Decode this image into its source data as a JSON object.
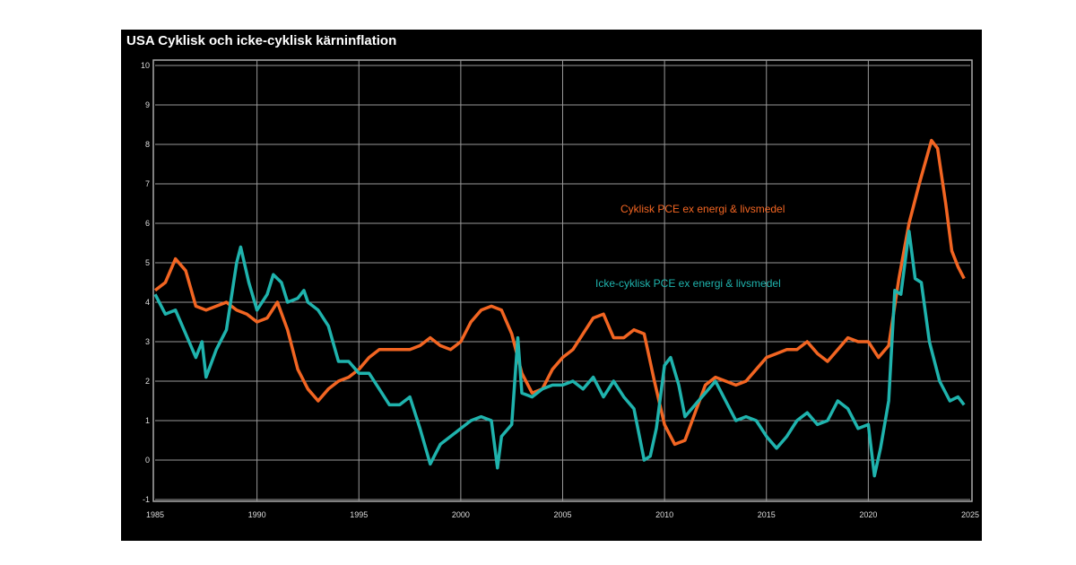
{
  "chart_data": {
    "type": "line",
    "title": "USA Cyklisk och icke-cyklisk kärninflation",
    "xlabel": "",
    "ylabel": "",
    "xlim": [
      1985,
      2025
    ],
    "ylim": [
      -1,
      10
    ],
    "xticks": [
      1985,
      1990,
      1995,
      2000,
      2005,
      2010,
      2015,
      2020,
      2025
    ],
    "yticks": [
      -1,
      0,
      1,
      2,
      3,
      4,
      5,
      6,
      7,
      8,
      9,
      10
    ],
    "grid": true,
    "legend": "inline-labels",
    "series": [
      {
        "name": "Cyklisk PCE ex energi & livsmedel",
        "color": "#f26522",
        "x": [
          1985,
          1985.5,
          1986,
          1986.5,
          1987,
          1987.5,
          1988,
          1988.5,
          1989,
          1989.5,
          1990,
          1990.5,
          1991,
          1991.5,
          1992,
          1992.5,
          1993,
          1993.5,
          1994,
          1994.5,
          1995,
          1995.5,
          1996,
          1997,
          1997.5,
          1998,
          1998.5,
          1999,
          1999.5,
          2000,
          2000.5,
          2001,
          2001.5,
          2002,
          2002.5,
          2003,
          2003.5,
          2004,
          2004.5,
          2005,
          2005.5,
          2006,
          2006.5,
          2007,
          2007.5,
          2008,
          2008.5,
          2009,
          2009.5,
          2010,
          2010.5,
          2011,
          2011.5,
          2012,
          2012.5,
          2013,
          2013.5,
          2014,
          2014.5,
          2015,
          2015.5,
          2016,
          2016.5,
          2017,
          2017.5,
          2018,
          2018.5,
          2019,
          2019.5,
          2020,
          2020.5,
          2021,
          2021.5,
          2022,
          2022.5,
          2023.1,
          2023.4,
          2023.8,
          2024.1,
          2024.4,
          2024.7
        ],
        "y": [
          4.3,
          4.5,
          5.1,
          4.8,
          3.9,
          3.8,
          3.9,
          4.0,
          3.8,
          3.7,
          3.5,
          3.6,
          4.0,
          3.3,
          2.3,
          1.8,
          1.5,
          1.8,
          2.0,
          2.1,
          2.3,
          2.6,
          2.8,
          2.8,
          2.8,
          2.9,
          3.1,
          2.9,
          2.8,
          3.0,
          3.5,
          3.8,
          3.9,
          3.8,
          3.2,
          2.2,
          1.7,
          1.8,
          2.3,
          2.6,
          2.8,
          3.2,
          3.6,
          3.7,
          3.1,
          3.1,
          3.3,
          3.2,
          2.0,
          0.9,
          0.4,
          0.5,
          1.2,
          1.9,
          2.1,
          2.0,
          1.9,
          2.0,
          2.3,
          2.6,
          2.7,
          2.8,
          2.8,
          3.0,
          2.7,
          2.5,
          2.8,
          3.1,
          3.0,
          3.0,
          2.6,
          2.9,
          4.6,
          6.0,
          7.0,
          8.1,
          7.9,
          6.5,
          5.3,
          4.9,
          4.6
        ]
      },
      {
        "name": "Icke-cyklisk PCE ex energi & livsmedel",
        "color": "#1fb3ad",
        "x": [
          1985,
          1985.5,
          1986,
          1986.5,
          1987,
          1987.3,
          1987.5,
          1988,
          1988.5,
          1989,
          1989.2,
          1989.6,
          1990,
          1990.5,
          1990.8,
          1991.2,
          1991.5,
          1992,
          1992.3,
          1992.5,
          1993,
          1993.5,
          1994,
          1994.5,
          1995,
          1995.5,
          1996,
          1996.5,
          1997,
          1997.5,
          1998,
          1998.5,
          1999,
          1999.5,
          2000,
          2000.5,
          2001,
          2001.5,
          2001.8,
          2002,
          2002.5,
          2002.8,
          2003,
          2003.5,
          2004,
          2004.5,
          2005,
          2005.5,
          2006,
          2006.5,
          2007,
          2007.5,
          2008,
          2008.5,
          2009,
          2009.3,
          2009.6,
          2010,
          2010.3,
          2010.7,
          2011,
          2011.5,
          2012,
          2012.5,
          2013,
          2013.5,
          2014,
          2014.5,
          2015,
          2015.5,
          2016,
          2016.5,
          2017,
          2017.5,
          2018,
          2018.5,
          2019,
          2019.5,
          2020,
          2020.3,
          2020.6,
          2021,
          2021.3,
          2021.6,
          2022,
          2022.3,
          2022.6,
          2023,
          2023.5,
          2024,
          2024.4,
          2024.7
        ],
        "y": [
          4.2,
          3.7,
          3.8,
          3.2,
          2.6,
          3.0,
          2.1,
          2.8,
          3.3,
          5.0,
          5.4,
          4.5,
          3.8,
          4.2,
          4.7,
          4.5,
          4.0,
          4.1,
          4.3,
          4.0,
          3.8,
          3.4,
          2.5,
          2.5,
          2.2,
          2.2,
          1.8,
          1.4,
          1.4,
          1.6,
          0.8,
          -0.1,
          0.4,
          0.6,
          0.8,
          1.0,
          1.1,
          1.0,
          -0.2,
          0.6,
          0.9,
          3.1,
          1.7,
          1.6,
          1.8,
          1.9,
          1.9,
          2.0,
          1.8,
          2.1,
          1.6,
          2.0,
          1.6,
          1.3,
          0.0,
          0.1,
          0.8,
          2.4,
          2.6,
          1.9,
          1.1,
          1.4,
          1.7,
          2.0,
          1.5,
          1.0,
          1.1,
          1.0,
          0.6,
          0.3,
          0.6,
          1.0,
          1.2,
          0.9,
          1.0,
          1.5,
          1.3,
          0.8,
          0.9,
          -0.4,
          0.3,
          1.5,
          4.3,
          4.2,
          5.8,
          4.6,
          4.5,
          3.0,
          2.0,
          1.5,
          1.6,
          1.4
        ]
      }
    ]
  }
}
